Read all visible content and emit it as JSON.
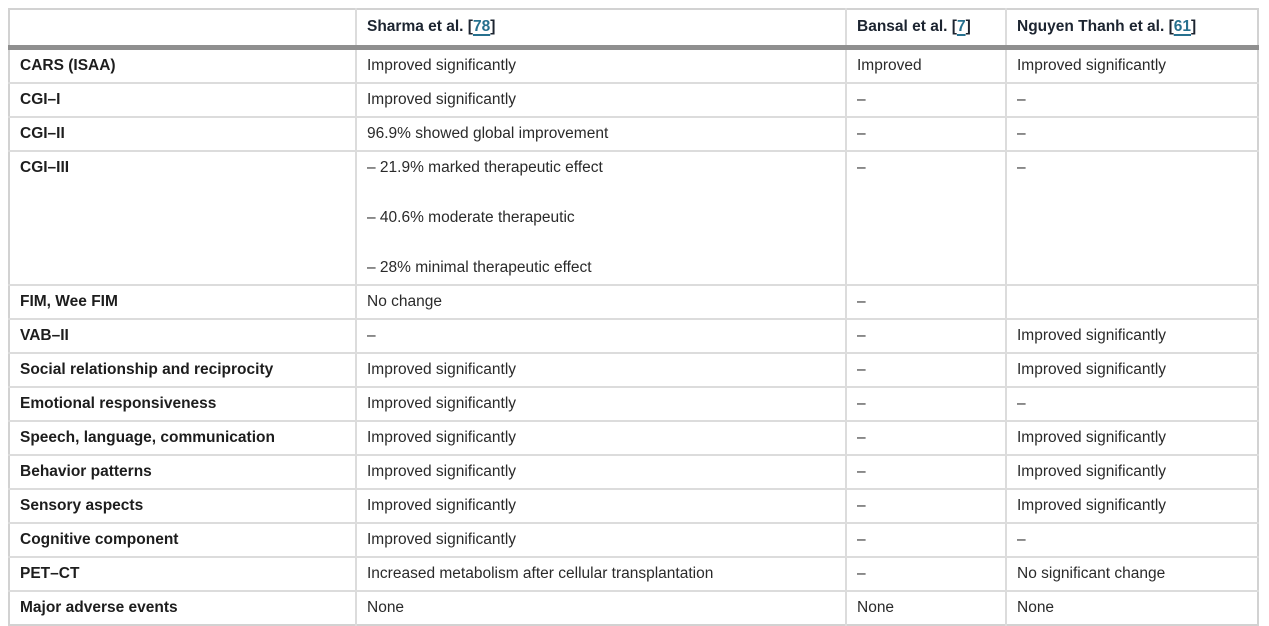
{
  "colors": {
    "citation_link": "#26708e",
    "header_rule": "#8f8f8f",
    "grid_line": "#dcdcdc",
    "text": "#232323"
  },
  "table": {
    "headers": [
      {
        "prefix": "",
        "cite": "",
        "suffix": ""
      },
      {
        "prefix": "Sharma et al. [",
        "cite": "78",
        "suffix": "]"
      },
      {
        "prefix": "Bansal et al. [",
        "cite": "7",
        "suffix": "]"
      },
      {
        "prefix": "Nguyen Thanh et al. [",
        "cite": "61",
        "suffix": "]"
      }
    ],
    "rows": [
      {
        "label": "CARS (ISAA)",
        "cells": [
          "Improved significantly",
          "Improved",
          "Improved significantly"
        ]
      },
      {
        "label": "CGI–I",
        "cells": [
          "Improved significantly",
          "–",
          "–"
        ]
      },
      {
        "label": "CGI–II",
        "cells": [
          "96.9% showed global improvement",
          "–",
          "–"
        ]
      },
      {
        "label": "CGI–III",
        "cells": [
          [
            "– 21.9% marked therapeutic effect",
            "– 40.6% moderate therapeutic",
            "– 28% minimal therapeutic effect"
          ],
          "–",
          "–"
        ]
      },
      {
        "label": "FIM, Wee FIM",
        "cells": [
          "No change",
          "–",
          ""
        ]
      },
      {
        "label": "VAB–II",
        "cells": [
          "–",
          "–",
          "Improved significantly"
        ]
      },
      {
        "label": "Social relationship and reciprocity",
        "cells": [
          "Improved significantly",
          "–",
          "Improved significantly"
        ]
      },
      {
        "label": "Emotional responsiveness",
        "cells": [
          "Improved significantly",
          "–",
          "–"
        ]
      },
      {
        "label": "Speech, language, communication",
        "cells": [
          "Improved significantly",
          "–",
          "Improved significantly"
        ]
      },
      {
        "label": "Behavior patterns",
        "cells": [
          "Improved significantly",
          "–",
          "Improved significantly"
        ]
      },
      {
        "label": "Sensory aspects",
        "cells": [
          "Improved significantly",
          "–",
          "Improved significantly"
        ]
      },
      {
        "label": "Cognitive component",
        "cells": [
          "Improved significantly",
          "–",
          "–"
        ]
      },
      {
        "label": "PET–CT",
        "cells": [
          "Increased metabolism after cellular transplantation",
          "–",
          "No significant change"
        ]
      },
      {
        "label": "Major adverse events",
        "cells": [
          "None",
          "None",
          "None"
        ]
      }
    ]
  }
}
